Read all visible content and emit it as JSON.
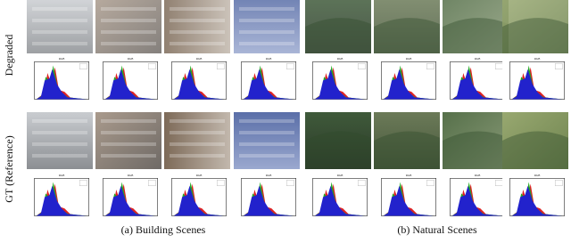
{
  "row_labels": [
    "Degraded",
    "GT (Reference)"
  ],
  "captions": [
    "(a) Building Scenes",
    "(b) Natural Scenes"
  ]
}
